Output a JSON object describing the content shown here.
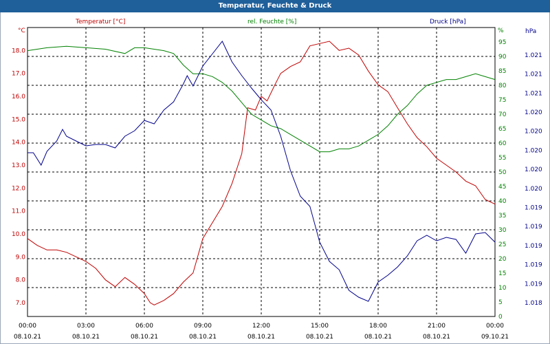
{
  "window": {
    "title": "Temperatur, Feuchte & Druck"
  },
  "chart_data": {
    "type": "line",
    "title": "Temperatur, Feuchte & Druck",
    "grid": true,
    "x_ticks": [
      {
        "time": "00:00",
        "date": "08.10.21"
      },
      {
        "time": "03:00",
        "date": "08.10.21"
      },
      {
        "time": "06:00",
        "date": "08.10.21"
      },
      {
        "time": "09:00",
        "date": "08.10.21"
      },
      {
        "time": "12:00",
        "date": "08.10.21"
      },
      {
        "time": "15:00",
        "date": "08.10.21"
      },
      {
        "time": "18:00",
        "date": "08.10.21"
      },
      {
        "time": "21:00",
        "date": "08.10.21"
      },
      {
        "time": "00:00",
        "date": "09.10.21"
      }
    ],
    "x_range_hours": [
      0,
      24
    ],
    "axes": {
      "temperature": {
        "unit": "°C",
        "ylim": [
          6.4,
          19.0
        ],
        "ticks": [
          "7.0",
          "8.0",
          "9.0",
          "10.0",
          "11.0",
          "12.0",
          "13.0",
          "14.0",
          "15.0",
          "16.0",
          "17.0",
          "18.0"
        ],
        "tick_values": [
          7,
          8,
          9,
          10,
          11,
          12,
          13,
          14,
          15,
          16,
          17,
          18
        ],
        "color": "#c00000"
      },
      "humidity": {
        "unit": "%",
        "ylim": [
          0,
          100
        ],
        "ticks": [
          "0",
          "5",
          "10",
          "15",
          "20",
          "25",
          "30",
          "35",
          "40",
          "45",
          "50",
          "55",
          "60",
          "65",
          "70",
          "75",
          "80",
          "85",
          "90",
          "95"
        ],
        "tick_values": [
          0,
          5,
          10,
          15,
          20,
          25,
          30,
          35,
          40,
          45,
          50,
          55,
          60,
          65,
          70,
          75,
          80,
          85,
          90,
          95
        ],
        "color": "#008000"
      },
      "pressure": {
        "unit": "hPa",
        "ticks": [
          "1.018",
          "1.019",
          "1.019",
          "1.019",
          "1.019",
          "1.019",
          "1.020",
          "1.020",
          "1.020",
          "1.020",
          "1.020",
          "1.021",
          "1.021",
          "1.021"
        ],
        "color": "#00008b"
      }
    },
    "series": [
      {
        "name": "Temperatur [°C]",
        "color": "#c00000",
        "axis": "temperature",
        "points": [
          [
            0,
            9.8
          ],
          [
            0.5,
            9.5
          ],
          [
            1,
            9.3
          ],
          [
            1.5,
            9.3
          ],
          [
            2,
            9.2
          ],
          [
            2.5,
            9.0
          ],
          [
            3,
            8.8
          ],
          [
            3.5,
            8.5
          ],
          [
            4,
            8.0
          ],
          [
            4.5,
            7.7
          ],
          [
            5,
            8.1
          ],
          [
            5.5,
            7.8
          ],
          [
            6,
            7.4
          ],
          [
            6.3,
            7.0
          ],
          [
            6.5,
            6.9
          ],
          [
            7,
            7.1
          ],
          [
            7.5,
            7.4
          ],
          [
            8,
            7.9
          ],
          [
            8.5,
            8.3
          ],
          [
            9,
            9.8
          ],
          [
            9.5,
            10.5
          ],
          [
            10,
            11.2
          ],
          [
            10.5,
            12.2
          ],
          [
            11,
            13.5
          ],
          [
            11.3,
            15.5
          ],
          [
            11.7,
            15.4
          ],
          [
            12,
            16.0
          ],
          [
            12.3,
            15.8
          ],
          [
            12.7,
            16.5
          ],
          [
            13,
            17.0
          ],
          [
            13.5,
            17.3
          ],
          [
            14,
            17.5
          ],
          [
            14.5,
            18.2
          ],
          [
            15,
            18.3
          ],
          [
            15.5,
            18.4
          ],
          [
            16,
            18.0
          ],
          [
            16.5,
            18.1
          ],
          [
            17,
            17.8
          ],
          [
            17.5,
            17.1
          ],
          [
            18,
            16.5
          ],
          [
            18.5,
            16.2
          ],
          [
            19,
            15.5
          ],
          [
            19.5,
            14.8
          ],
          [
            20,
            14.2
          ],
          [
            20.5,
            13.8
          ],
          [
            21,
            13.3
          ],
          [
            21.5,
            13.0
          ],
          [
            22,
            12.7
          ],
          [
            22.5,
            12.3
          ],
          [
            23,
            12.1
          ],
          [
            23.5,
            11.5
          ],
          [
            24,
            11.3
          ]
        ]
      },
      {
        "name": "rel. Feuchte [%]",
        "color": "#008000",
        "axis": "humidity",
        "points": [
          [
            0,
            92
          ],
          [
            1,
            93
          ],
          [
            2,
            93.5
          ],
          [
            3,
            93
          ],
          [
            4,
            92.5
          ],
          [
            5,
            91
          ],
          [
            5.5,
            93
          ],
          [
            6,
            93
          ],
          [
            7,
            92
          ],
          [
            7.5,
            91
          ],
          [
            8,
            87
          ],
          [
            8.5,
            84
          ],
          [
            9,
            84
          ],
          [
            9.5,
            83
          ],
          [
            10,
            81
          ],
          [
            10.5,
            78
          ],
          [
            11,
            74
          ],
          [
            11.5,
            70
          ],
          [
            12,
            68
          ],
          [
            12.5,
            66
          ],
          [
            13,
            65
          ],
          [
            13.5,
            63
          ],
          [
            14,
            61
          ],
          [
            14.5,
            59
          ],
          [
            15,
            57
          ],
          [
            15.5,
            57
          ],
          [
            16,
            58
          ],
          [
            16.5,
            58
          ],
          [
            17,
            59
          ],
          [
            17.5,
            61
          ],
          [
            18,
            63
          ],
          [
            18.5,
            66
          ],
          [
            19,
            70
          ],
          [
            19.5,
            73
          ],
          [
            20,
            77
          ],
          [
            20.5,
            80
          ],
          [
            21,
            81
          ],
          [
            21.5,
            82
          ],
          [
            22,
            82
          ],
          [
            22.5,
            83
          ],
          [
            23,
            84
          ],
          [
            23.5,
            83
          ],
          [
            24,
            82
          ]
        ]
      },
      {
        "name": "Druck [hPa]",
        "color": "#00008b",
        "axis": "pressure_px",
        "points": [
          [
            0,
            222
          ],
          [
            0.3,
            222
          ],
          [
            0.7,
            240
          ],
          [
            1,
            220
          ],
          [
            1.5,
            205
          ],
          [
            1.8,
            188
          ],
          [
            2,
            198
          ],
          [
            2.5,
            205
          ],
          [
            3,
            212
          ],
          [
            3.5,
            210
          ],
          [
            4,
            210
          ],
          [
            4.5,
            215
          ],
          [
            5,
            198
          ],
          [
            5.5,
            190
          ],
          [
            6,
            175
          ],
          [
            6.5,
            180
          ],
          [
            7,
            160
          ],
          [
            7.5,
            148
          ],
          [
            8,
            122
          ],
          [
            8.2,
            110
          ],
          [
            8.5,
            125
          ],
          [
            9,
            96
          ],
          [
            9.5,
            78
          ],
          [
            10,
            60
          ],
          [
            10.5,
            90
          ],
          [
            11,
            110
          ],
          [
            11.5,
            128
          ],
          [
            12,
            145
          ],
          [
            12.5,
            160
          ],
          [
            13,
            198
          ],
          [
            13.5,
            248
          ],
          [
            14,
            285
          ],
          [
            14.5,
            300
          ],
          [
            15,
            352
          ],
          [
            15.5,
            380
          ],
          [
            16,
            392
          ],
          [
            16.5,
            422
          ],
          [
            17,
            432
          ],
          [
            17.5,
            438
          ],
          [
            18,
            410
          ],
          [
            18.5,
            400
          ],
          [
            19,
            388
          ],
          [
            19.5,
            372
          ],
          [
            20,
            350
          ],
          [
            20.5,
            342
          ],
          [
            21,
            350
          ],
          [
            21.5,
            345
          ],
          [
            22,
            348
          ],
          [
            22.5,
            368
          ],
          [
            23,
            340
          ],
          [
            23.5,
            338
          ],
          [
            24,
            352
          ]
        ]
      }
    ]
  }
}
